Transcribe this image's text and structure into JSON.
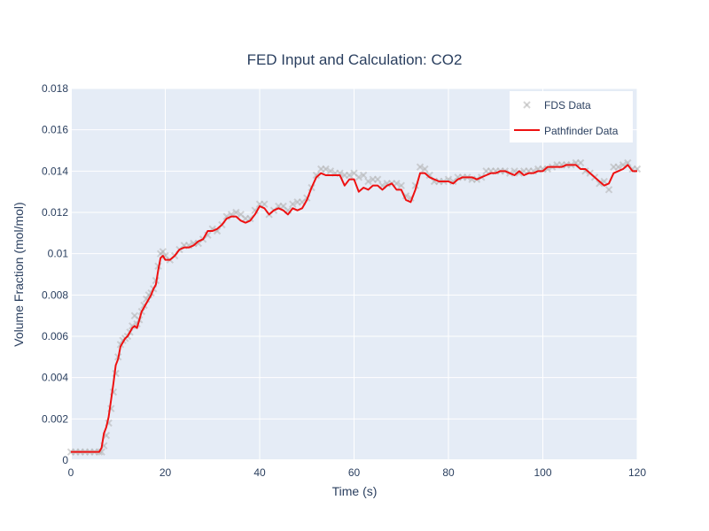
{
  "chart_data": {
    "type": "line",
    "title": "FED Input and Calculation: CO2",
    "xlabel": "Time (s)",
    "ylabel": "Volume Fraction (mol/mol)",
    "xlim": [
      0,
      120
    ],
    "ylim": [
      0,
      0.018
    ],
    "x_ticks": [
      0,
      20,
      40,
      60,
      80,
      100,
      120
    ],
    "x_tick_labels": [
      "0",
      "20",
      "40",
      "60",
      "80",
      "100",
      "120"
    ],
    "y_ticks": [
      0,
      0.002,
      0.004,
      0.006,
      0.008,
      0.01,
      0.012,
      0.014,
      0.016,
      0.018
    ],
    "y_tick_labels": [
      "0",
      "0.002",
      "0.004",
      "0.006",
      "0.008",
      "0.01",
      "0.012",
      "0.014",
      "0.016",
      "0.018"
    ],
    "grid": true,
    "legend_position": "top-right",
    "plot_bg": "#e5ecf6",
    "series": [
      {
        "name": "FDS Data",
        "mode": "markers",
        "marker_symbol": "x",
        "color": "#b3b3b3",
        "x": [
          0,
          1,
          2,
          3,
          4,
          5,
          6,
          6.5,
          7,
          7.5,
          8,
          8.5,
          9,
          9.5,
          10,
          10.5,
          11,
          11.5,
          12,
          12.5,
          13,
          13.5,
          14,
          14.5,
          15,
          15.5,
          16,
          16.5,
          17,
          17.5,
          18,
          18.5,
          19,
          19.5,
          20,
          21,
          22,
          23,
          24,
          25,
          26,
          27,
          28,
          29,
          30,
          31,
          32,
          33,
          34,
          35,
          36,
          37,
          38,
          39,
          40,
          41,
          42,
          43,
          44,
          45,
          46,
          47,
          48,
          49,
          50,
          51,
          52,
          53,
          54,
          55,
          56,
          57,
          58,
          59,
          60,
          61,
          62,
          63,
          64,
          65,
          66,
          67,
          68,
          69,
          70,
          71,
          72,
          73,
          74,
          75,
          76,
          77,
          78,
          79,
          80,
          81,
          82,
          83,
          84,
          85,
          86,
          87,
          88,
          89,
          90,
          91,
          92,
          93,
          94,
          95,
          96,
          97,
          98,
          99,
          100,
          101,
          102,
          103,
          104,
          105,
          106,
          107,
          108,
          109,
          110,
          111,
          112,
          113,
          114,
          115,
          116,
          117,
          118,
          119,
          120
        ],
        "y": [
          0.0004,
          0.0004,
          0.0004,
          0.0004,
          0.0004,
          0.0004,
          0.0004,
          0.0004,
          0.0007,
          0.0012,
          0.0018,
          0.0025,
          0.0033,
          0.0042,
          0.005,
          0.0056,
          0.0058,
          0.0059,
          0.006,
          0.0062,
          0.0065,
          0.007,
          0.0066,
          0.0068,
          0.0072,
          0.0075,
          0.0078,
          0.008,
          0.0081,
          0.0083,
          0.0087,
          0.0094,
          0.01,
          0.0101,
          0.0099,
          0.0097,
          0.0099,
          0.0102,
          0.0104,
          0.0104,
          0.0105,
          0.0105,
          0.0107,
          0.0109,
          0.0112,
          0.0111,
          0.0114,
          0.0118,
          0.0119,
          0.012,
          0.0119,
          0.0117,
          0.0117,
          0.0121,
          0.0124,
          0.0124,
          0.0119,
          0.0121,
          0.0123,
          0.0123,
          0.0121,
          0.0124,
          0.0125,
          0.0125,
          0.0127,
          0.0132,
          0.0138,
          0.0141,
          0.0141,
          0.014,
          0.0139,
          0.0139,
          0.0138,
          0.0138,
          0.0139,
          0.0137,
          0.0138,
          0.0135,
          0.0136,
          0.0136,
          0.0133,
          0.0134,
          0.0134,
          0.0134,
          0.0133,
          0.0128,
          0.0127,
          0.0133,
          0.0142,
          0.0141,
          0.0138,
          0.0135,
          0.0135,
          0.0135,
          0.0136,
          0.0135,
          0.0137,
          0.0137,
          0.0137,
          0.0136,
          0.0136,
          0.0137,
          0.014,
          0.014,
          0.014,
          0.014,
          0.014,
          0.0139,
          0.014,
          0.0139,
          0.014,
          0.014,
          0.014,
          0.0141,
          0.0141,
          0.0141,
          0.0142,
          0.0143,
          0.0143,
          0.0143,
          0.0143,
          0.0144,
          0.0144,
          0.014,
          0.0139,
          0.0137,
          0.0134,
          0.0135,
          0.0131,
          0.0142,
          0.0142,
          0.0143,
          0.0144,
          0.0141,
          0.0141
        ]
      },
      {
        "name": "Pathfinder Data",
        "mode": "lines",
        "color": "#ee1111",
        "x": [
          0,
          1,
          2,
          3,
          4,
          5,
          6,
          6.5,
          7,
          7.5,
          8,
          8.5,
          9,
          9.5,
          10,
          10.5,
          11,
          11.5,
          12,
          12.5,
          13,
          13.5,
          14,
          14.5,
          15,
          15.5,
          16,
          16.5,
          17,
          17.5,
          18,
          18.5,
          19,
          19.5,
          20,
          21,
          22,
          23,
          24,
          25,
          26,
          27,
          28,
          29,
          30,
          31,
          32,
          33,
          34,
          35,
          36,
          37,
          38,
          39,
          40,
          41,
          42,
          43,
          44,
          45,
          46,
          47,
          48,
          49,
          50,
          51,
          52,
          53,
          54,
          55,
          56,
          57,
          58,
          59,
          60,
          61,
          62,
          63,
          64,
          65,
          66,
          67,
          68,
          69,
          70,
          71,
          72,
          73,
          74,
          75,
          76,
          77,
          78,
          79,
          80,
          81,
          82,
          83,
          84,
          85,
          86,
          87,
          88,
          89,
          90,
          91,
          92,
          93,
          94,
          95,
          96,
          97,
          98,
          99,
          100,
          101,
          102,
          103,
          104,
          105,
          106,
          107,
          108,
          109,
          110,
          111,
          112,
          113,
          114,
          115,
          116,
          117,
          118,
          119,
          120
        ],
        "y": [
          0.0004,
          0.0004,
          0.0004,
          0.0004,
          0.0004,
          0.0004,
          0.0004,
          0.0006,
          0.0013,
          0.0016,
          0.0021,
          0.0029,
          0.0037,
          0.0046,
          0.0049,
          0.0055,
          0.0057,
          0.0059,
          0.006,
          0.0062,
          0.0064,
          0.0065,
          0.0064,
          0.0068,
          0.0072,
          0.0074,
          0.0076,
          0.0078,
          0.008,
          0.0083,
          0.0085,
          0.0092,
          0.0098,
          0.0099,
          0.0097,
          0.0097,
          0.0099,
          0.0102,
          0.0103,
          0.0103,
          0.0104,
          0.0106,
          0.0107,
          0.0111,
          0.0111,
          0.0112,
          0.0114,
          0.0117,
          0.0118,
          0.0118,
          0.0116,
          0.0115,
          0.0116,
          0.0119,
          0.0123,
          0.0122,
          0.0119,
          0.0121,
          0.0122,
          0.0121,
          0.0119,
          0.0122,
          0.0121,
          0.0122,
          0.0126,
          0.0132,
          0.0137,
          0.0139,
          0.0138,
          0.0138,
          0.0138,
          0.0138,
          0.0133,
          0.0136,
          0.0136,
          0.013,
          0.0132,
          0.0131,
          0.0133,
          0.0133,
          0.0131,
          0.0133,
          0.0134,
          0.0131,
          0.0131,
          0.0126,
          0.0125,
          0.0131,
          0.0139,
          0.0139,
          0.0137,
          0.0136,
          0.0135,
          0.0135,
          0.0135,
          0.0134,
          0.0136,
          0.0137,
          0.0137,
          0.0137,
          0.0136,
          0.0137,
          0.0138,
          0.0139,
          0.0139,
          0.014,
          0.014,
          0.0139,
          0.0138,
          0.014,
          0.0138,
          0.0139,
          0.0139,
          0.014,
          0.014,
          0.0142,
          0.0142,
          0.0142,
          0.0142,
          0.0143,
          0.0143,
          0.0143,
          0.0141,
          0.0141,
          0.0139,
          0.0137,
          0.0135,
          0.0133,
          0.0134,
          0.0139,
          0.014,
          0.0141,
          0.0143,
          0.014,
          0.014
        ]
      }
    ]
  }
}
